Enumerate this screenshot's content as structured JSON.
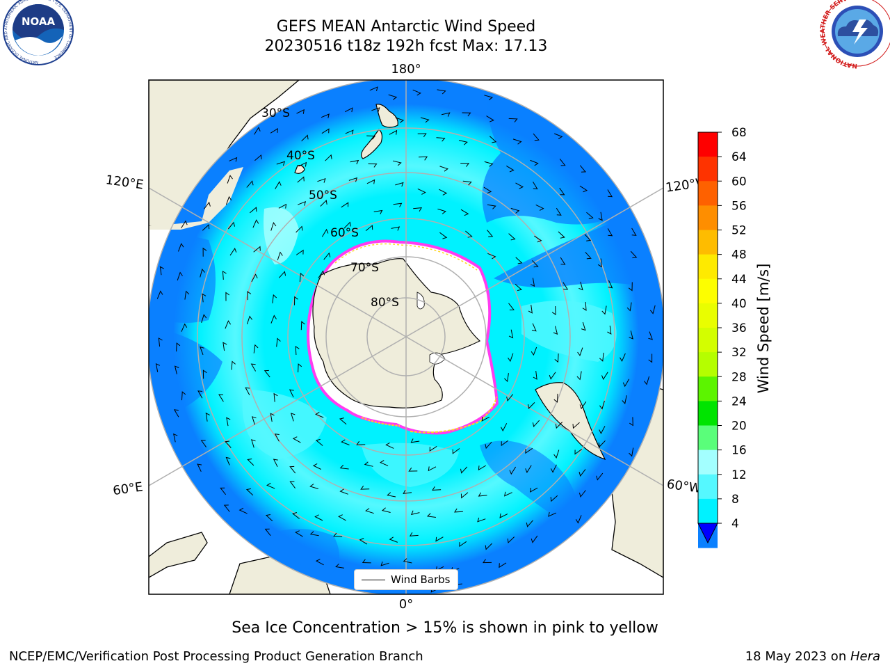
{
  "header": {
    "title_line1": "GEFS MEAN Antarctic Wind Speed",
    "title_line2": "20230516 t18z 192h fcst   Max: 17.13",
    "noaa_logo_text": "NOAA",
    "noaa_logo_ring_text": "NATIONAL OCEANIC AND ATMOSPHERIC ADMINISTRATION • U.S. DEPARTMENT OF COMMERCE",
    "nws_logo_ring_text": "NATIONAL WEATHER SERVICE"
  },
  "map": {
    "projection": "south-polar-stereographic",
    "longitude_labels": {
      "top": "180°",
      "bottom": "0°",
      "upper_left": "120°E",
      "lower_left": "60°E",
      "upper_right": "120°W",
      "lower_right": "60°W"
    },
    "latitude_labels": [
      "30°S",
      "40°S",
      "50°S",
      "60°S",
      "70°S",
      "80°S"
    ],
    "legend": {
      "label": "Wind Barbs"
    },
    "colors": {
      "land": "#efeddb",
      "ocean_4_8": "#0a80ff",
      "ocean_8_12": "#00f2ff",
      "ocean_12_16": "#55f8ff",
      "ocean_16_20": "#a3ffff",
      "sea_ice_pink": "#ff3cf0",
      "sea_ice_yellow": "#ffd81e",
      "ice_shelf": "#ffffff"
    }
  },
  "colorbar": {
    "label": "Wind Speed [m/s]",
    "ticks": [
      "68",
      "64",
      "60",
      "56",
      "52",
      "48",
      "44",
      "40",
      "36",
      "32",
      "28",
      "24",
      "20",
      "16",
      "12",
      "8",
      "4"
    ],
    "colors": [
      "#fe0000",
      "#fe3300",
      "#fe6100",
      "#fe8e00",
      "#febc00",
      "#feea00",
      "#fdfe00",
      "#e9fe00",
      "#d3fe00",
      "#b5fe00",
      "#5cf400",
      "#00e400",
      "#5afe7a",
      "#a3ffff",
      "#55f8ff",
      "#00f2ff",
      "#0a80ff"
    ],
    "extend_color": "#0000ff"
  },
  "footer": {
    "caption": "Sea Ice Concentration > 15% is shown in pink to yellow",
    "left": "NCEP/EMC/Verification Post Processing Product Generation Branch",
    "right_prefix": "18 May 2023 on ",
    "right_machine": "Hera"
  }
}
